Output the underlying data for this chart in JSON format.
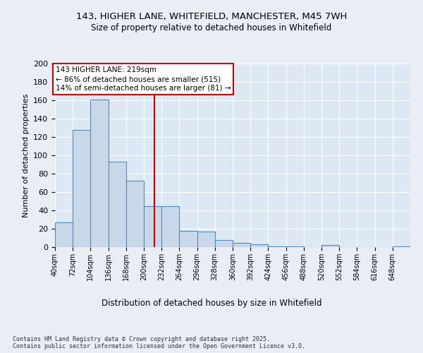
{
  "title_line1": "143, HIGHER LANE, WHITEFIELD, MANCHESTER, M45 7WH",
  "title_line2": "Size of property relative to detached houses in Whitefield",
  "xlabel": "Distribution of detached houses by size in Whitefield",
  "ylabel": "Number of detached properties",
  "bin_edges": [
    40,
    72,
    104,
    136,
    168,
    200,
    232,
    264,
    296,
    328,
    360,
    392,
    424,
    456,
    488,
    520,
    552,
    584,
    616,
    648,
    680
  ],
  "bar_heights": [
    27,
    128,
    161,
    93,
    72,
    45,
    45,
    18,
    17,
    8,
    5,
    3,
    1,
    1,
    0,
    2,
    0,
    0,
    0,
    1
  ],
  "bar_color": "#c8d8e8",
  "bar_edge_color": "#5588bb",
  "property_size": 219,
  "red_line_color": "#cc0000",
  "annotation_text": "143 HIGHER LANE: 219sqm\n← 86% of detached houses are smaller (515)\n14% of semi-detached houses are larger (81) →",
  "annotation_box_color": "#ffffff",
  "annotation_box_edge_color": "#cc0000",
  "background_color": "#e8eef4",
  "plot_background_color": "#dce8f4",
  "grid_color": "#ffffff",
  "footnote": "Contains HM Land Registry data © Crown copyright and database right 2025.\nContains public sector information licensed under the Open Government Licence v3.0.",
  "ylim": [
    0,
    200
  ],
  "yticks": [
    0,
    20,
    40,
    60,
    80,
    100,
    120,
    140,
    160,
    180,
    200
  ]
}
